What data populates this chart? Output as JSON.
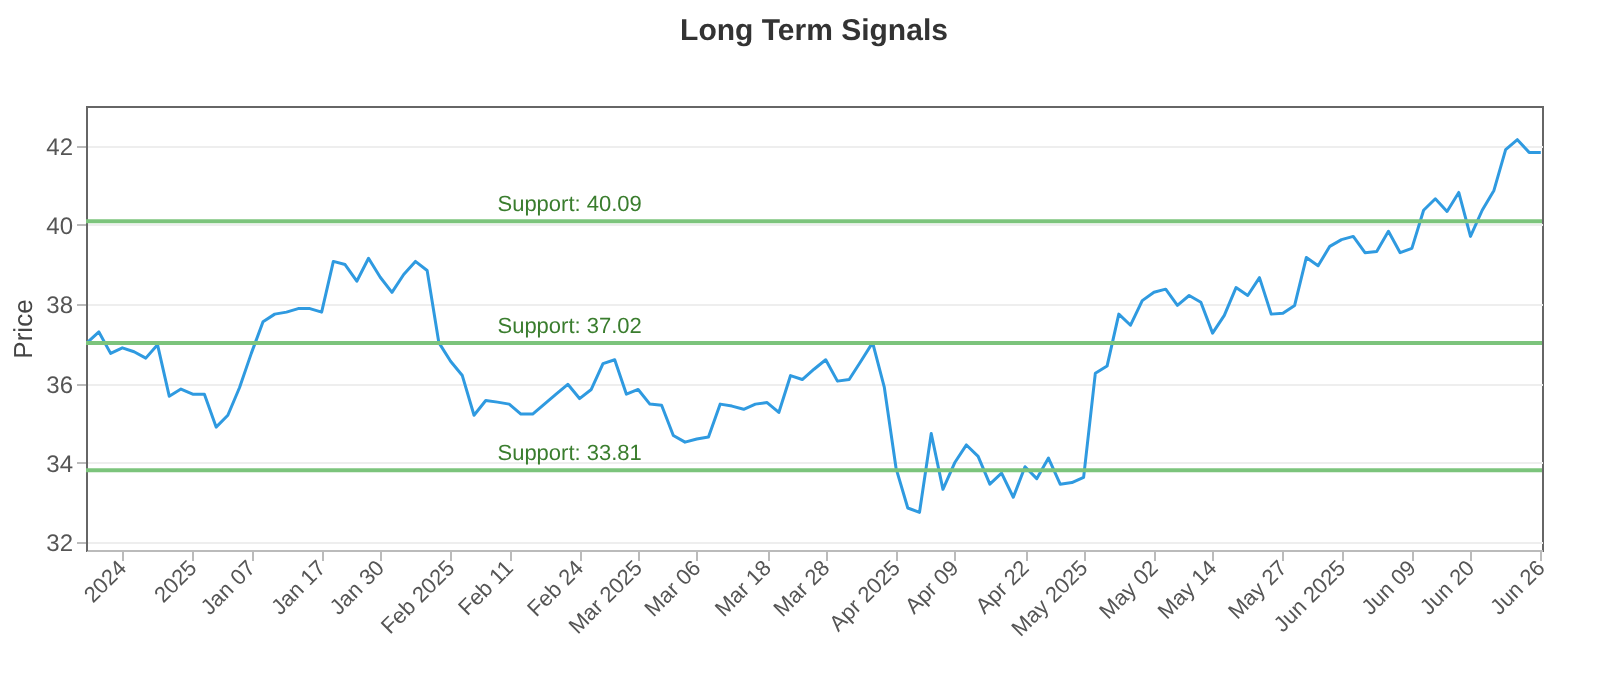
{
  "chart_data": {
    "type": "line",
    "title": "Long Term Signals",
    "ylabel": "Price",
    "categories": [
      null,
      null,
      null,
      "2024",
      null,
      null,
      null,
      null,
      null,
      "2025",
      null,
      null,
      null,
      null,
      "Jan 07",
      null,
      null,
      null,
      null,
      null,
      "Jan 17",
      null,
      null,
      null,
      null,
      "Jan 30",
      null,
      null,
      null,
      null,
      null,
      "Feb 2025",
      null,
      null,
      null,
      null,
      "Feb 11",
      null,
      null,
      null,
      null,
      null,
      "Feb 24",
      null,
      null,
      null,
      null,
      "Mar 2025",
      null,
      null,
      null,
      null,
      "Mar 06",
      null,
      null,
      null,
      null,
      null,
      "Mar 18",
      null,
      null,
      null,
      null,
      "Mar 28",
      null,
      null,
      null,
      null,
      null,
      "Apr 2025",
      null,
      null,
      null,
      null,
      "Apr 09",
      null,
      null,
      null,
      null,
      null,
      "Apr 22",
      null,
      null,
      null,
      null,
      "May 2025",
      null,
      null,
      null,
      null,
      null,
      "May 02",
      null,
      null,
      null,
      null,
      "May 14",
      null,
      null,
      null,
      null,
      null,
      "May 27",
      null,
      null,
      null,
      null,
      "Jun 2025",
      null,
      null,
      null,
      null,
      null,
      "Jun 09",
      null,
      null,
      null,
      null,
      "Jun 20",
      null,
      null,
      null,
      null,
      null,
      "Jun 26"
    ],
    "series": [
      {
        "color": "#2f9ae0",
        "values": [
          37.03,
          37.3,
          36.76,
          36.9,
          36.8,
          36.64,
          36.98,
          35.68,
          35.86,
          35.73,
          35.73,
          34.9,
          35.2,
          35.9,
          36.76,
          37.56,
          37.75,
          37.8,
          37.89,
          37.89,
          37.8,
          39.08,
          39.0,
          38.58,
          39.16,
          38.68,
          38.3,
          38.75,
          39.08,
          38.85,
          37.03,
          36.56,
          36.2,
          35.2,
          35.57,
          35.53,
          35.48,
          35.23,
          35.23,
          35.48,
          35.73,
          35.98,
          35.62,
          35.85,
          36.5,
          36.6,
          35.73,
          35.85,
          35.48,
          35.45,
          34.69,
          34.52,
          34.6,
          34.65,
          35.48,
          35.43,
          35.35,
          35.48,
          35.52,
          35.27,
          36.2,
          36.1,
          36.36,
          36.6,
          36.06,
          36.1,
          36.56,
          37.03,
          35.9,
          33.86,
          32.86,
          32.75,
          34.74,
          33.33,
          34.0,
          34.45,
          34.16,
          33.46,
          33.74,
          33.13,
          33.9,
          33.6,
          34.12,
          33.46,
          33.5,
          33.63,
          36.26,
          36.44,
          37.75,
          37.47,
          38.09,
          38.3,
          38.38,
          37.97,
          38.22,
          38.05,
          37.27,
          37.72,
          38.42,
          38.22,
          38.67,
          37.75,
          37.77,
          37.97,
          39.18,
          38.97,
          39.46,
          39.63,
          39.71,
          39.3,
          39.33,
          39.84,
          39.3,
          39.41,
          40.37,
          40.66,
          40.34,
          40.82,
          39.71,
          40.37,
          40.87,
          41.9,
          42.15,
          41.83,
          41.83
        ]
      }
    ],
    "ylim": [
      31.8,
      43
    ],
    "yticks": [
      32,
      34,
      36,
      38,
      40,
      42
    ],
    "grid": "y",
    "marker": "none",
    "line_style": "solid",
    "ref_lines": [
      {
        "axis": "y",
        "value": 40.09,
        "label": "Support: 40.09",
        "color": "#7cc47c"
      },
      {
        "axis": "y",
        "value": 37.02,
        "label": "Support: 37.02",
        "color": "#7cc47c"
      },
      {
        "axis": "y",
        "value": 33.81,
        "label": "Support: 33.81",
        "color": "#7cc47c"
      }
    ]
  }
}
